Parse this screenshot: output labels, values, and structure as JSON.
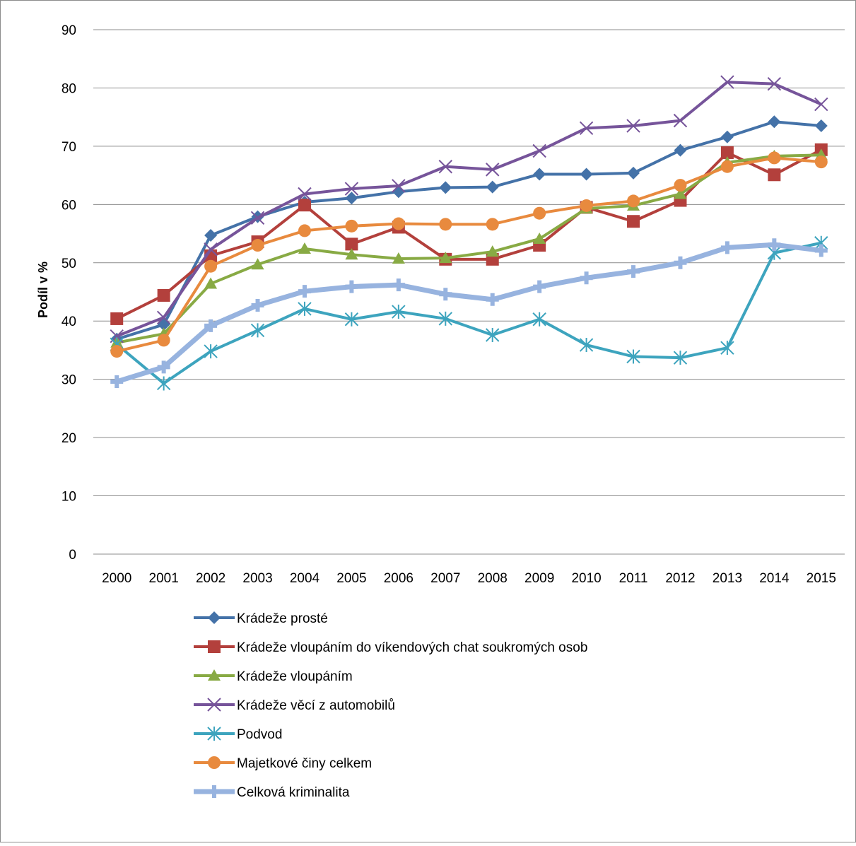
{
  "chart_data": {
    "type": "line",
    "title": "",
    "xlabel": "",
    "ylabel": "Podíl v %",
    "ylim": [
      0,
      90
    ],
    "yticks": [
      0,
      10,
      20,
      30,
      40,
      50,
      60,
      70,
      80,
      90
    ],
    "grid": "horizontal",
    "legend_position": "bottom",
    "categories": [
      "2000",
      "2001",
      "2002",
      "2003",
      "2004",
      "2005",
      "2006",
      "2007",
      "2008",
      "2009",
      "2010",
      "2011",
      "2012",
      "2013",
      "2014",
      "2015"
    ],
    "series": [
      {
        "name": "Krádeže prosté",
        "color": "#4472A8",
        "marker": "diamond",
        "values": [
          36.9,
          39.4,
          54.7,
          57.9,
          60.4,
          61.1,
          62.2,
          62.9,
          63.0,
          65.2,
          65.2,
          65.4,
          69.3,
          71.6,
          74.2,
          73.5
        ]
      },
      {
        "name": "Krádeže vloupáním do víkendových chat soukromých osob",
        "color": "#B3403C",
        "marker": "square",
        "values": [
          40.4,
          44.4,
          51.2,
          53.6,
          59.9,
          53.2,
          56.1,
          50.6,
          50.6,
          53.0,
          59.5,
          57.1,
          60.7,
          68.9,
          65.1,
          69.4
        ]
      },
      {
        "name": "Krádeže vloupáním",
        "color": "#88AA44",
        "marker": "triangle",
        "values": [
          36.3,
          37.8,
          46.4,
          49.7,
          52.4,
          51.4,
          50.7,
          50.8,
          51.9,
          54.1,
          59.3,
          59.8,
          61.8,
          67.2,
          68.3,
          68.5
        ]
      },
      {
        "name": "Krádeže věcí z automobilů",
        "color": "#76549A",
        "marker": "x",
        "values": [
          37.4,
          40.6,
          52.3,
          57.7,
          61.8,
          62.7,
          63.2,
          66.5,
          66.0,
          69.2,
          73.1,
          73.5,
          74.4,
          81.0,
          80.7,
          77.2
        ]
      },
      {
        "name": "Podvod",
        "color": "#3DA4BE",
        "marker": "asterisk",
        "values": [
          36.0,
          29.3,
          34.8,
          38.4,
          42.1,
          40.3,
          41.6,
          40.4,
          37.6,
          40.3,
          35.9,
          33.9,
          33.7,
          35.4,
          51.7,
          53.4
        ]
      },
      {
        "name": "Majetkové činy celkem",
        "color": "#E88A3E",
        "marker": "circle",
        "values": [
          34.8,
          36.7,
          49.4,
          53.0,
          55.5,
          56.3,
          56.7,
          56.6,
          56.6,
          58.5,
          59.8,
          60.6,
          63.3,
          66.5,
          68.0,
          67.3
        ]
      },
      {
        "name": "Celková kriminalita",
        "color": "#97B3DF",
        "marker": "plus",
        "values": [
          29.6,
          32.1,
          39.2,
          42.7,
          45.1,
          45.9,
          46.2,
          44.6,
          43.7,
          45.9,
          47.4,
          48.5,
          50.0,
          52.6,
          53.1,
          52.1
        ]
      }
    ]
  }
}
